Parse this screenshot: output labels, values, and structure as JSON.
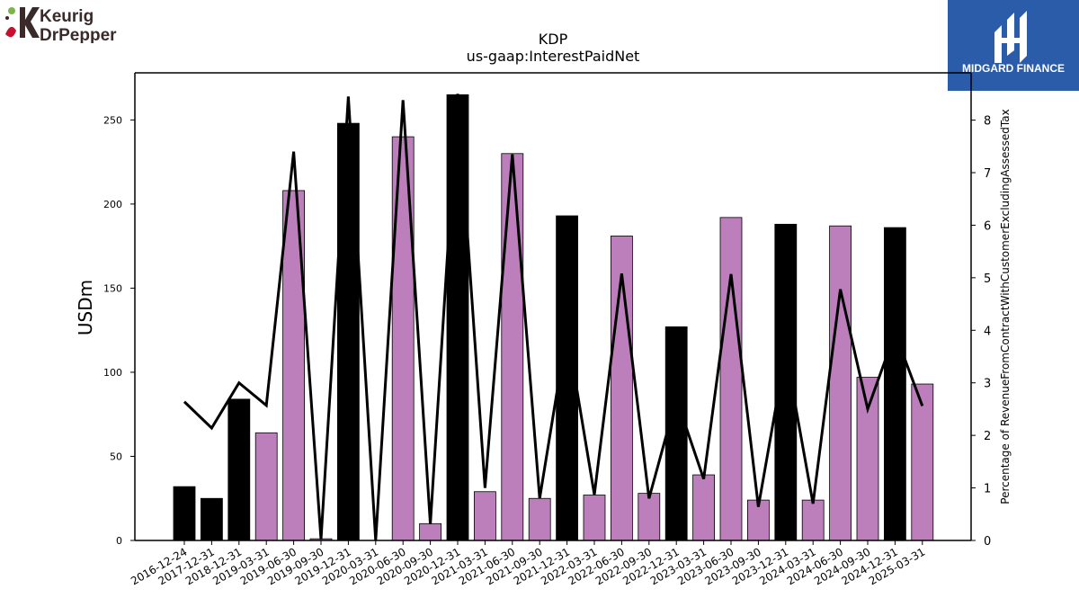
{
  "logos": {
    "left_line1": "Keurig",
    "left_line2": "DrPepper",
    "right_text": "MIDGARD FINANCE"
  },
  "colors": {
    "bar_black": "#000000",
    "bar_purple": "#bc7fbc",
    "line": "#000000",
    "brand_blue": "#2a5caa",
    "kdp_dark": "#3b2a2a",
    "kdp_red": "#c8102e",
    "kdp_green": "#7ab648"
  },
  "chart_data": {
    "type": "bar",
    "title": "KDP",
    "subtitle": "us-gaap:InterestPaidNet",
    "ylabel": "USDm",
    "y2label": "Percentage of RevenueFromContractWithCustomerExcludingAssessedTax",
    "ylim": [
      0,
      278
    ],
    "y2lim": [
      0,
      8.9
    ],
    "yticks": [
      0,
      50,
      100,
      150,
      200,
      250
    ],
    "y2ticks": [
      0,
      1,
      2,
      3,
      4,
      5,
      6,
      7,
      8
    ],
    "categories": [
      "2016-12-24",
      "2017-12-31",
      "2018-12-31",
      "2019-03-31",
      "2019-06-30",
      "2019-09-30",
      "2019-12-31",
      "2020-03-31",
      "2020-06-30",
      "2020-09-30",
      "2020-12-31",
      "2021-03-31",
      "2021-06-30",
      "2021-09-30",
      "2021-12-31",
      "2022-03-31",
      "2022-06-30",
      "2022-09-30",
      "2022-12-31",
      "2023-03-31",
      "2023-06-30",
      "2023-09-30",
      "2023-12-31",
      "2024-03-31",
      "2024-06-30",
      "2024-09-30",
      "2024-12-31",
      "2025-03-31"
    ],
    "series": [
      {
        "type": "bar",
        "values": [
          32,
          25,
          84,
          64,
          208,
          1,
          248,
          0,
          240,
          10,
          265,
          29,
          230,
          25,
          193,
          27,
          181,
          28,
          127,
          39,
          192,
          24,
          188,
          24,
          187,
          97,
          186,
          93
        ],
        "bar_colors": [
          "black",
          "black",
          "black",
          "purple",
          "purple",
          "purple",
          "black",
          "purple",
          "purple",
          "purple",
          "black",
          "purple",
          "purple",
          "purple",
          "black",
          "purple",
          "purple",
          "purple",
          "black",
          "purple",
          "purple",
          "purple",
          "black",
          "purple",
          "purple",
          "purple",
          "black",
          "purple"
        ]
      },
      {
        "type": "line",
        "axis": "right",
        "values": [
          2.64,
          2.14,
          3.0,
          2.57,
          7.4,
          0.02,
          8.45,
          0.0,
          8.38,
          0.31,
          8.5,
          1.0,
          7.35,
          0.8,
          4.0,
          0.87,
          5.08,
          0.8,
          2.7,
          1.17,
          5.07,
          0.64,
          3.6,
          0.7,
          4.78,
          2.5,
          3.95,
          2.56
        ]
      }
    ]
  }
}
